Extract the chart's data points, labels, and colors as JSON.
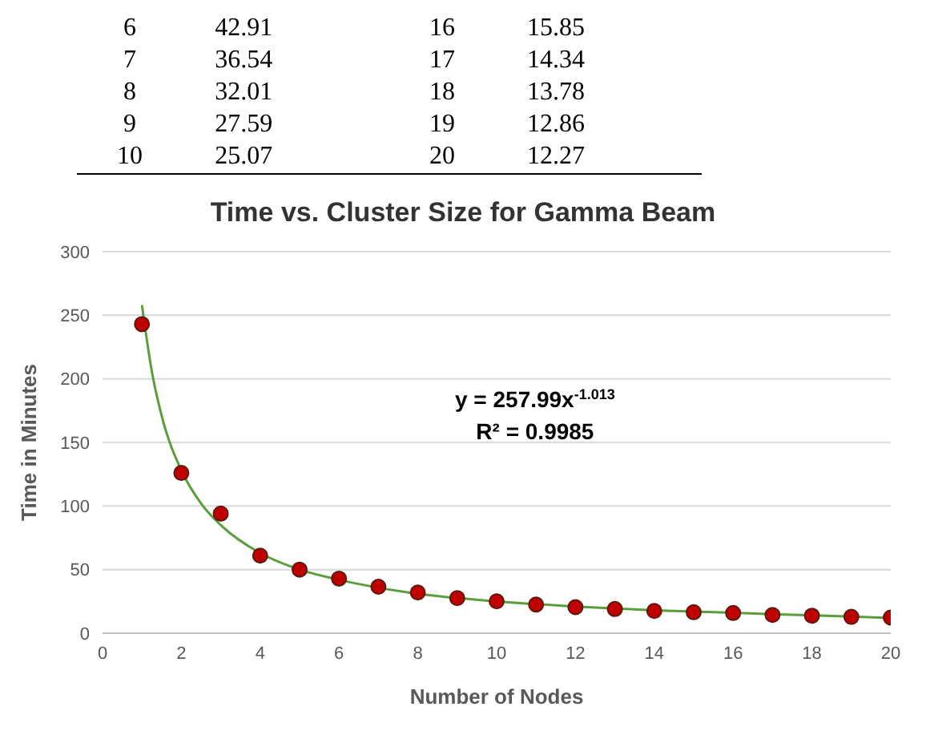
{
  "chart_data": {
    "type": "scatter",
    "title": "Time vs. Cluster Size for Gamma Beam",
    "xlabel": "Number of Nodes",
    "ylabel": "Time in Minutes",
    "xlim": [
      0,
      20
    ],
    "xticks": [
      0,
      2,
      4,
      6,
      8,
      10,
      12,
      14,
      16,
      18,
      20
    ],
    "ylim": [
      0,
      300
    ],
    "yticks": [
      0,
      50,
      100,
      150,
      200,
      250,
      300
    ],
    "grid": "y",
    "marker": "circle",
    "annotations": [
      "y = 257.99x$^{-1.013}$",
      "R² = 0.9985",
      "6",
      "42.91",
      "16",
      "15.85",
      "7",
      "36.54",
      "17",
      "14.34",
      "8",
      "32.01",
      "18",
      "13.78",
      "9",
      "27.59",
      "19",
      "12.86",
      "10",
      "25.07",
      "20",
      "12.27"
    ],
    "series": [
      {
        "color": "#c00000",
        "x": [
          1,
          2,
          3,
          4,
          5,
          6,
          7,
          8,
          9,
          10,
          11,
          12,
          13,
          14,
          15,
          16,
          17,
          18,
          19,
          20
        ],
        "values": [
          243,
          126,
          94,
          61,
          50,
          42.91,
          36.54,
          32.01,
          27.59,
          25.07,
          22.5,
          20.5,
          19,
          17.5,
          16.5,
          15.85,
          14.34,
          13.78,
          12.86,
          12.27
        ]
      },
      {
        "type": "line",
        "marker": "none",
        "color": "#5a9e3c",
        "x": [
          1,
          1.25,
          1.5,
          2,
          2.5,
          3,
          4,
          5,
          6,
          8,
          10,
          12,
          14,
          16,
          18,
          20
        ],
        "values": [
          258,
          206,
          171,
          128,
          102,
          85,
          63,
          50,
          42,
          31,
          25,
          21,
          18,
          16,
          14,
          12
        ]
      }
    ]
  }
}
